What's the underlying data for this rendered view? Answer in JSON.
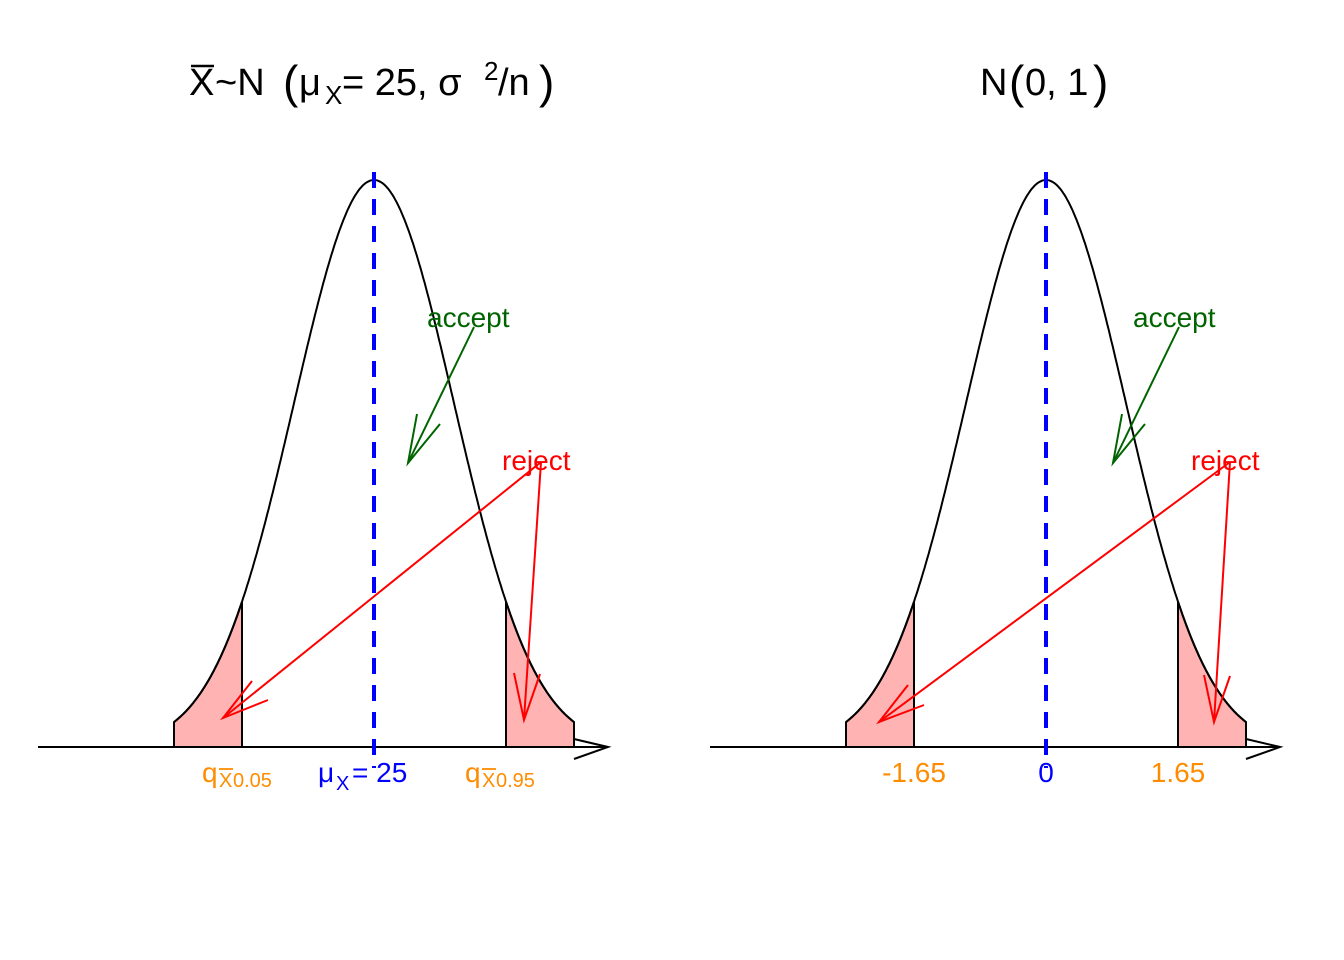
{
  "panels": [
    {
      "id": "left",
      "title": {
        "xbar": "X",
        "tilde_N": " ~N",
        "open": "(",
        "mu": "μ",
        "mu_sub": "X",
        "eq": " = 25, σ",
        "sup": "2",
        "tail": "/n",
        "close": ")"
      },
      "accept_label": "accept",
      "reject_label": "reject",
      "ticks": {
        "lower": {
          "main": "q",
          "sub_bar": "X",
          "sub": " 0.05"
        },
        "center": {
          "mu": "μ",
          "sub": "X",
          "rest": " = 25"
        },
        "upper": {
          "main": "q",
          "sub_bar": "X",
          "sub": " 0.95"
        }
      }
    },
    {
      "id": "right",
      "title": {
        "plain": "N",
        "open": "(",
        "args": "0, 1",
        "close": ")"
      },
      "accept_label": "accept",
      "reject_label": "reject",
      "ticks": {
        "lower": "-1.65",
        "center": "0",
        "upper": "1.65"
      }
    }
  ],
  "model": {
    "left_distribution": {
      "mean": 25,
      "alpha_lower": 0.05,
      "alpha_upper": 0.95
    },
    "right_distribution": {
      "mean": 0,
      "sd": 1,
      "critical_lower": -1.65,
      "critical_upper": 1.65
    }
  },
  "colors": {
    "curve": "#000000",
    "center_line": "#0000ff",
    "reject_fill": "#ffb3b3",
    "reject_text": "#ff0000",
    "accept_text": "#006400",
    "tick_label": "#ff8c00",
    "center_label": "#0000ff"
  }
}
